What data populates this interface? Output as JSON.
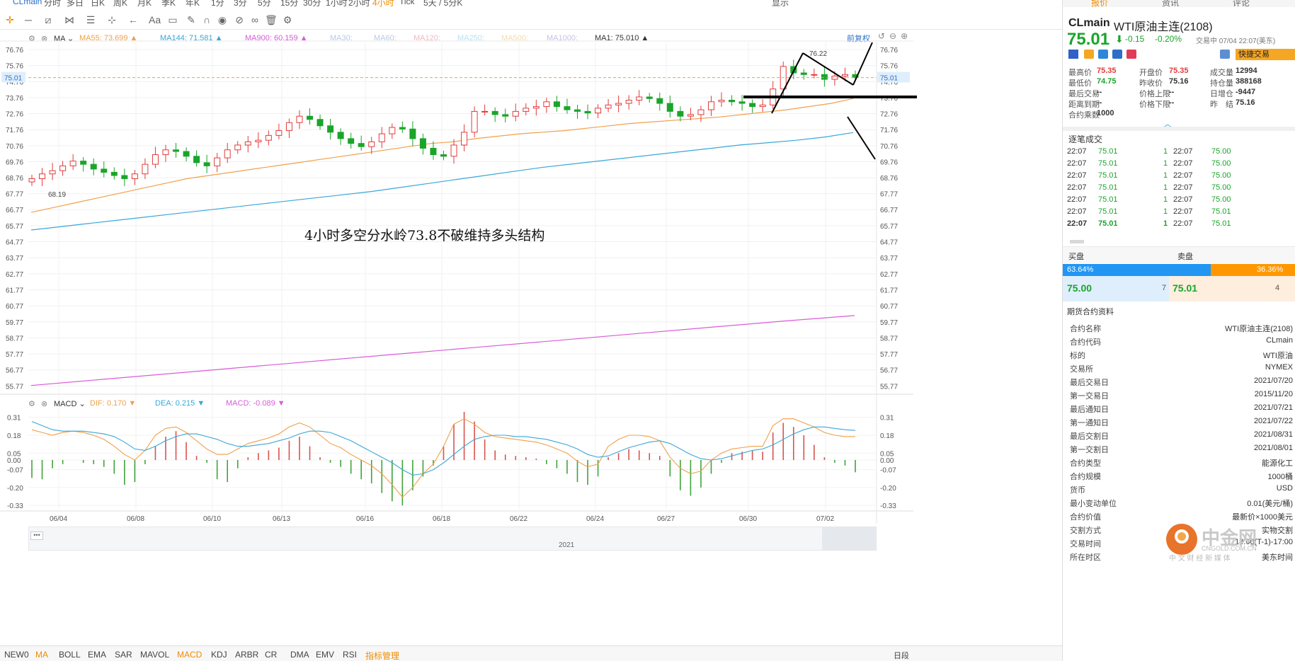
{
  "topbar": {
    "items": [
      "CLmain",
      "分时",
      "多日",
      "日K",
      "周K",
      "月K",
      "季K",
      "年K",
      "1分",
      "3分",
      "5分",
      "15分",
      "30分",
      "1小时",
      "2小时",
      "4小时",
      "Tick",
      "5天 / 5分K"
    ],
    "active_index": 15,
    "right_label": "显示"
  },
  "legend": {
    "ma": [
      {
        "label": "MA",
        "color": "#333333"
      },
      {
        "label": "MA55: 73.699",
        "color": "#f0a04b"
      },
      {
        "label": "MA144: 71.581",
        "color": "#3aa7d8"
      },
      {
        "label": "MA900: 60.159",
        "color": "#d75dd8"
      },
      {
        "label": "MA30:",
        "color": "#b9c8e8"
      },
      {
        "label": "MA60:",
        "color": "#b9c8e8"
      },
      {
        "label": "MA120:",
        "color": "#f3b9c2"
      },
      {
        "label": "MA250:",
        "color": "#b6e3f3"
      },
      {
        "label": "MA500:",
        "color": "#f3dcb0"
      },
      {
        "label": "MA1000:",
        "color": "#c9c0e8"
      },
      {
        "label": "MA1: 75.010",
        "color": "#333333"
      }
    ],
    "fuquan": "前复权",
    "macd": [
      {
        "label": "MACD",
        "color": "#333333"
      },
      {
        "label": "DIF: 0.170",
        "color": "#f0a04b"
      },
      {
        "label": "DEA: 0.215",
        "color": "#3aa7d8"
      },
      {
        "label": "MACD: -0.089",
        "color": "#d75dd8"
      }
    ]
  },
  "annotation": "4小时多空分水岭73.8不破维持多头结构",
  "price_current": "75.01",
  "chart_data": [
    {
      "type": "candlestick",
      "title": "",
      "y_ticks": [
        "76.76",
        "75.76",
        "74.76",
        "73.76",
        "72.76",
        "71.76",
        "70.76",
        "69.76",
        "68.76",
        "67.77",
        "66.77",
        "65.77",
        "64.77",
        "63.77",
        "62.77",
        "61.77",
        "60.77",
        "59.77",
        "58.77",
        "57.77",
        "56.77",
        "55.77"
      ],
      "ylim": [
        55.3,
        77.2
      ],
      "x_ticks": [
        "06/04",
        "06/08",
        "06/10",
        "06/13",
        "06/16",
        "06/18",
        "06/22",
        "06/24",
        "06/27",
        "06/30",
        "07/02"
      ],
      "high_label": "76.22",
      "low_label": "68.19",
      "close": [
        68.7,
        69.0,
        69.2,
        69.5,
        69.8,
        69.6,
        69.3,
        69.1,
        68.9,
        68.7,
        69.0,
        69.6,
        70.2,
        70.5,
        70.4,
        70.1,
        69.7,
        69.5,
        70.0,
        70.5,
        70.8,
        71.0,
        71.1,
        71.4,
        71.7,
        72.2,
        72.6,
        72.4,
        72.0,
        71.6,
        71.2,
        70.9,
        70.7,
        71.0,
        71.5,
        71.9,
        71.8,
        71.2,
        70.6,
        70.2,
        70.1,
        70.8,
        71.6,
        72.9,
        72.9,
        72.7,
        72.6,
        72.9,
        73.1,
        73.2,
        73.5,
        73.2,
        73.0,
        72.9,
        72.8,
        73.1,
        73.3,
        73.4,
        73.6,
        73.8,
        73.7,
        73.4,
        72.9,
        72.6,
        72.7,
        73.0,
        73.5,
        73.6,
        73.5,
        73.4,
        73.2,
        73.3,
        74.3,
        75.7,
        75.3,
        75.2,
        75.2,
        74.9,
        75.1,
        75.2,
        75.01
      ],
      "series": [
        {
          "name": "MA55",
          "color": "#f0a04b",
          "values": [
            66.6,
            66.9,
            67.2,
            67.5,
            67.8,
            68.1,
            68.4,
            68.7,
            68.9,
            69.1,
            69.3,
            69.5,
            69.7,
            69.9,
            70.1,
            70.3,
            70.5,
            70.7,
            70.9,
            71.0,
            71.2,
            71.35,
            71.5,
            71.6,
            71.7,
            71.85,
            72.0,
            72.15,
            72.25,
            72.35,
            72.45,
            72.55,
            72.7,
            72.85,
            73.0,
            73.2,
            73.4,
            73.7
          ]
        },
        {
          "name": "MA144",
          "color": "#3aa7d8",
          "values": [
            65.5,
            65.7,
            65.9,
            66.1,
            66.3,
            66.5,
            66.7,
            66.9,
            67.1,
            67.3,
            67.5,
            67.7,
            67.9,
            68.15,
            68.4,
            68.65,
            68.9,
            69.15,
            69.4,
            69.6,
            69.8,
            70.0,
            70.2,
            70.4,
            70.6,
            70.8,
            70.95,
            71.1,
            71.3,
            71.58
          ]
        },
        {
          "name": "MA900",
          "color": "#d75dd8",
          "values": [
            55.8,
            56.2,
            56.6,
            57.0,
            57.4,
            57.8,
            58.2,
            58.6,
            59.0,
            59.4,
            59.8,
            60.16
          ]
        }
      ]
    },
    {
      "type": "bar",
      "title": "",
      "y_ticks": [
        "0.31",
        "0.18",
        "0.05",
        "0.00",
        "-0.07",
        "-0.20",
        "-0.33"
      ],
      "ylim": [
        -0.36,
        0.36
      ],
      "macd": [
        -0.13,
        -0.14,
        -0.06,
        -0.03,
        0.0,
        -0.02,
        -0.03,
        -0.05,
        -0.1,
        -0.18,
        -0.16,
        -0.03,
        0.1,
        0.17,
        0.21,
        0.13,
        0.03,
        -0.02,
        -0.14,
        -0.16,
        -0.06,
        0.02,
        0.05,
        0.07,
        0.09,
        0.14,
        0.17,
        0.1,
        0.02,
        -0.02,
        -0.05,
        -0.1,
        -0.14,
        -0.17,
        -0.24,
        -0.3,
        -0.33,
        -0.22,
        -0.12,
        -0.04,
        0.1,
        0.26,
        0.35,
        0.28,
        0.15,
        0.07,
        0.04,
        0.03,
        0.02,
        0.01,
        -0.03,
        -0.06,
        -0.1,
        -0.16,
        -0.18,
        -0.12,
        0.02,
        0.05,
        0.08,
        0.07,
        0.05,
        0.03,
        -0.12,
        -0.22,
        -0.26,
        -0.2,
        -0.1,
        -0.02,
        0.05,
        0.06,
        0.07,
        0.06,
        0.2,
        0.27,
        0.24,
        0.18,
        0.11,
        0.02,
        -0.02,
        -0.04,
        -0.089
      ],
      "dif": [
        0.22,
        0.2,
        0.18,
        0.2,
        0.21,
        0.2,
        0.18,
        0.15,
        0.1,
        0.04,
        0.0,
        0.07,
        0.18,
        0.23,
        0.24,
        0.2,
        0.14,
        0.08,
        0.04,
        0.04,
        0.08,
        0.12,
        0.14,
        0.16,
        0.19,
        0.24,
        0.27,
        0.24,
        0.18,
        0.12,
        0.09,
        0.04,
        0.0,
        -0.04,
        -0.1,
        -0.18,
        -0.27,
        -0.2,
        -0.1,
        -0.03,
        0.1,
        0.26,
        0.3,
        0.26,
        0.2,
        0.17,
        0.16,
        0.15,
        0.14,
        0.13,
        0.11,
        0.08,
        0.05,
        -0.01,
        -0.05,
        -0.03,
        0.1,
        0.15,
        0.18,
        0.18,
        0.17,
        0.14,
        0.02,
        -0.06,
        -0.1,
        -0.08,
        0.0,
        0.05,
        0.08,
        0.09,
        0.1,
        0.1,
        0.25,
        0.3,
        0.3,
        0.27,
        0.24,
        0.2,
        0.18,
        0.17,
        0.17
      ],
      "dea": [
        0.28,
        0.25,
        0.22,
        0.21,
        0.21,
        0.21,
        0.2,
        0.19,
        0.17,
        0.13,
        0.08,
        0.07,
        0.1,
        0.14,
        0.17,
        0.19,
        0.19,
        0.17,
        0.15,
        0.12,
        0.1,
        0.1,
        0.11,
        0.12,
        0.14,
        0.16,
        0.19,
        0.21,
        0.21,
        0.2,
        0.17,
        0.14,
        0.1,
        0.06,
        0.02,
        -0.02,
        -0.07,
        -0.11,
        -0.1,
        -0.07,
        -0.02,
        0.04,
        0.1,
        0.15,
        0.17,
        0.18,
        0.18,
        0.17,
        0.17,
        0.16,
        0.15,
        0.13,
        0.11,
        0.08,
        0.04,
        0.02,
        0.03,
        0.06,
        0.09,
        0.11,
        0.13,
        0.14,
        0.12,
        0.08,
        0.04,
        0.01,
        0.0,
        0.01,
        0.03,
        0.05,
        0.07,
        0.08,
        0.11,
        0.15,
        0.19,
        0.22,
        0.24,
        0.24,
        0.23,
        0.22,
        0.215
      ]
    }
  ],
  "navigator": {
    "year": "2021"
  },
  "indicators": {
    "items": [
      "NEW0",
      "MA",
      "BOLL",
      "EMA",
      "SAR",
      "MAVOL",
      "MACD",
      "KDJ",
      "ARBR",
      "CR",
      "DMA",
      "EMV",
      "RSI",
      "指标管理"
    ],
    "active": [
      "MA",
      "MACD",
      "指标管理"
    ],
    "right": "日段"
  },
  "panel": {
    "tabs": [
      "报价",
      "资讯",
      "评论"
    ],
    "symbol": "CLmain",
    "name": "WTI原油主连(2108)",
    "price": "75.01",
    "arrow": "⬇",
    "change": "-0.15",
    "change_pct": "-0.20%",
    "status": "交易中 07/04 22:07(美东)",
    "quick_trade": "快捷交易",
    "stats": [
      [
        {
          "k": "最高价",
          "v": "75.35",
          "c": "red"
        },
        {
          "k": "开盘价",
          "v": "75.35",
          "c": "red"
        },
        {
          "k": "成交量",
          "v": "12994",
          "c": "dark"
        }
      ],
      [
        {
          "k": "最低价",
          "v": "74.75",
          "c": "green"
        },
        {
          "k": "昨收价",
          "v": "75.16",
          "c": "dark"
        },
        {
          "k": "持仓量",
          "v": "388168",
          "c": "dark"
        }
      ],
      [
        {
          "k": "最后交易",
          "v": "--",
          "c": "dark"
        },
        {
          "k": "价格上限",
          "v": "--",
          "c": "dark"
        },
        {
          "k": "日增仓",
          "v": "-9447",
          "c": "dark"
        }
      ],
      [
        {
          "k": "距离到期",
          "v": "--",
          "c": "dark"
        },
        {
          "k": "价格下限",
          "v": "--",
          "c": "dark"
        },
        {
          "k": "昨　结",
          "v": "75.16",
          "c": "dark"
        }
      ],
      [
        {
          "k": "合约乘数",
          "v": "1000",
          "c": "dark"
        }
      ]
    ],
    "ticks_title": "逐笔成交",
    "ticks": [
      {
        "t1": "22:07",
        "p1": "75.01",
        "v": "1",
        "t2": "22:07",
        "p2": "75.00"
      },
      {
        "t1": "22:07",
        "p1": "75.01",
        "v": "1",
        "t2": "22:07",
        "p2": "75.00"
      },
      {
        "t1": "22:07",
        "p1": "75.01",
        "v": "1",
        "t2": "22:07",
        "p2": "75.00"
      },
      {
        "t1": "22:07",
        "p1": "75.01",
        "v": "1",
        "t2": "22:07",
        "p2": "75.00"
      },
      {
        "t1": "22:07",
        "p1": "75.01",
        "v": "1",
        "t2": "22:07",
        "p2": "75.00"
      },
      {
        "t1": "22:07",
        "p1": "75.01",
        "v": "1",
        "t2": "22:07",
        "p2": "75.01"
      },
      {
        "t1": "22:07",
        "p1": "75.01",
        "v": "1",
        "t2": "22:07",
        "p2": "75.01"
      }
    ],
    "buy_label": "买盘",
    "sell_label": "卖盘",
    "buy_pct": "63.64%",
    "sell_pct": "36.36%",
    "bid": "75.00",
    "bid_vol": "7",
    "ask": "75.01",
    "ask_vol": "4",
    "info_title": "期货合约资料",
    "info": [
      {
        "k": "合约名称",
        "v": "WTI原油主连(2108)"
      },
      {
        "k": "合约代码",
        "v": "CLmain"
      },
      {
        "k": "标的",
        "v": "WTI原油"
      },
      {
        "k": "交易所",
        "v": "NYMEX"
      },
      {
        "k": "最后交易日",
        "v": "2021/07/20"
      },
      {
        "k": "第一交易日",
        "v": "2015/11/20"
      },
      {
        "k": "最后通知日",
        "v": "2021/07/21"
      },
      {
        "k": "第一通知日",
        "v": "2021/07/22"
      },
      {
        "k": "最后交割日",
        "v": "2021/08/31"
      },
      {
        "k": "第一交割日",
        "v": "2021/08/01"
      },
      {
        "k": "合约类型",
        "v": "能源化工"
      },
      {
        "k": "合约规模",
        "v": "1000桶"
      },
      {
        "k": "货币",
        "v": "USD"
      },
      {
        "k": "最小变动单位",
        "v": "0.01(美元/桶)"
      },
      {
        "k": "合约价值",
        "v": "最新价×1000美元"
      },
      {
        "k": "交割方式",
        "v": "实物交割"
      },
      {
        "k": "交易时间",
        "v": "18:00(T-1)-17:00"
      },
      {
        "k": "所在时区",
        "v": "美东时间"
      }
    ],
    "watermark_cn": "中金网",
    "watermark_en": "CNGOLD.COM.CN",
    "watermark_sub": "中 文 财 经 新 媒 体"
  }
}
